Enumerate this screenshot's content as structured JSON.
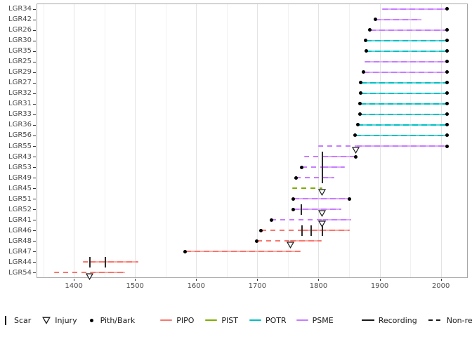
{
  "legend": {
    "scar": "Scar",
    "injury": "Injury",
    "pith_bark": "Pith/Bark",
    "species": [
      "PIPO",
      "PIST",
      "POTR",
      "PSME"
    ],
    "recording": "Recording",
    "non_recording": "Non-recording"
  },
  "chart_data": {
    "type": "line",
    "subtype": "fire-history-timeline",
    "title": "",
    "xlabel": "",
    "ylabel": "",
    "grid": "on",
    "legend_position": "bottom",
    "x_axis": {
      "tick_labels": [
        "1400",
        "1500",
        "1600",
        "1700",
        "1800",
        "1900",
        "2000"
      ],
      "ticks": [
        1400,
        1500,
        1600,
        1700,
        1800,
        1900,
        2000
      ],
      "minor_ticks": [
        1350,
        1450,
        1550,
        1650,
        1750,
        1850,
        1950
      ],
      "range": [
        1339,
        2044
      ]
    },
    "categories": [
      "LGR34",
      "LGR42",
      "LGR26",
      "LGR30",
      "LGR35",
      "LGR25",
      "LGR29",
      "LGR27",
      "LGR32",
      "LGR31",
      "LGR33",
      "LGR36",
      "LGR56",
      "LGR55",
      "LGR43",
      "LGR53",
      "LGR49",
      "LGR45",
      "LGR51",
      "LGR52",
      "LGR41",
      "LGR46",
      "LGR48",
      "LGR47",
      "LGR44",
      "LGR54"
    ],
    "species_colors": {
      "PIPO": "#F8766D",
      "PIST": "#7CAE00",
      "POTR": "#00BFC4",
      "PSME": "#C77CFF"
    },
    "species_colors_light": {
      "PIPO": "#FBA8A1",
      "PIST": "#A6C84D",
      "POTR": "#52D4D8",
      "PSME": "#DBA8FF"
    },
    "marker_color": "#000000",
    "recording_color": "#1A1A1A",
    "series": [
      {
        "name": "LGR34",
        "species": "PSME",
        "segments": [
          {
            "start": 1904,
            "end": 2010,
            "type": "recording"
          }
        ],
        "pith_bark": [
          2010
        ],
        "scars": [],
        "injuries": []
      },
      {
        "name": "LGR42",
        "species": "PSME",
        "segments": [
          {
            "start": 1893,
            "end": 1968,
            "type": "recording"
          }
        ],
        "pith_bark": [
          1893
        ],
        "scars": [],
        "injuries": []
      },
      {
        "name": "LGR26",
        "species": "PSME",
        "segments": [
          {
            "start": 1884,
            "end": 2010,
            "type": "recording"
          }
        ],
        "pith_bark": [
          1884,
          2010
        ],
        "scars": [],
        "injuries": []
      },
      {
        "name": "LGR30",
        "species": "POTR",
        "segments": [
          {
            "start": 1877,
            "end": 2010,
            "type": "recording"
          }
        ],
        "pith_bark": [
          1877,
          2010
        ],
        "scars": [],
        "injuries": []
      },
      {
        "name": "LGR35",
        "species": "POTR",
        "segments": [
          {
            "start": 1878,
            "end": 2010,
            "type": "recording"
          }
        ],
        "pith_bark": [
          1878,
          2010
        ],
        "scars": [],
        "injuries": []
      },
      {
        "name": "LGR25",
        "species": "PSME",
        "segments": [
          {
            "start": 1875,
            "end": 2010,
            "type": "recording"
          }
        ],
        "pith_bark": [
          2010
        ],
        "scars": [],
        "injuries": []
      },
      {
        "name": "LGR29",
        "species": "PSME",
        "segments": [
          {
            "start": 1874,
            "end": 2010,
            "type": "recording"
          }
        ],
        "pith_bark": [
          1874,
          2010
        ],
        "scars": [],
        "injuries": []
      },
      {
        "name": "LGR27",
        "species": "POTR",
        "segments": [
          {
            "start": 1869,
            "end": 2010,
            "type": "recording"
          }
        ],
        "pith_bark": [
          1869,
          2010
        ],
        "scars": [],
        "injuries": []
      },
      {
        "name": "LGR32",
        "species": "POTR",
        "segments": [
          {
            "start": 1869,
            "end": 2010,
            "type": "recording"
          }
        ],
        "pith_bark": [
          1869,
          2010
        ],
        "scars": [],
        "injuries": []
      },
      {
        "name": "LGR31",
        "species": "POTR",
        "segments": [
          {
            "start": 1868,
            "end": 2010,
            "type": "recording"
          }
        ],
        "pith_bark": [
          1868,
          2010
        ],
        "scars": [],
        "injuries": []
      },
      {
        "name": "LGR33",
        "species": "POTR",
        "segments": [
          {
            "start": 1868,
            "end": 2010,
            "type": "recording"
          }
        ],
        "pith_bark": [
          1868,
          2010
        ],
        "scars": [],
        "injuries": []
      },
      {
        "name": "LGR36",
        "species": "POTR",
        "segments": [
          {
            "start": 1864,
            "end": 2010,
            "type": "recording"
          }
        ],
        "pith_bark": [
          1864,
          2010
        ],
        "scars": [],
        "injuries": []
      },
      {
        "name": "LGR56",
        "species": "POTR",
        "segments": [
          {
            "start": 1860,
            "end": 2010,
            "type": "recording"
          }
        ],
        "pith_bark": [
          1860,
          2010
        ],
        "scars": [],
        "injuries": []
      },
      {
        "name": "LGR55",
        "species": "PSME",
        "segments": [
          {
            "start": 1800,
            "end": 1861,
            "type": "non-recording"
          },
          {
            "start": 1861,
            "end": 2010,
            "type": "recording"
          }
        ],
        "pith_bark": [
          2010
        ],
        "scars": [],
        "injuries": [
          1861
        ]
      },
      {
        "name": "LGR43",
        "species": "PSME",
        "segments": [
          {
            "start": 1777,
            "end": 1806,
            "type": "non-recording"
          },
          {
            "start": 1806,
            "end": 1861,
            "type": "recording"
          }
        ],
        "pith_bark": [
          1861
        ],
        "scars": [
          1806
        ],
        "injuries": []
      },
      {
        "name": "LGR53",
        "species": "PSME",
        "segments": [
          {
            "start": 1773,
            "end": 1806,
            "type": "non-recording"
          },
          {
            "start": 1806,
            "end": 1843,
            "type": "recording"
          }
        ],
        "pith_bark": [
          1773
        ],
        "scars": [
          1806
        ],
        "injuries": []
      },
      {
        "name": "LGR49",
        "species": "PSME",
        "segments": [
          {
            "start": 1763,
            "end": 1806,
            "type": "non-recording"
          },
          {
            "start": 1806,
            "end": 1826,
            "type": "recording"
          }
        ],
        "pith_bark": [
          1763
        ],
        "scars": [
          1806
        ],
        "injuries": []
      },
      {
        "name": "LGR45",
        "species": "PIST",
        "segments": [
          {
            "start": 1757,
            "end": 1806,
            "type": "non-recording"
          }
        ],
        "pith_bark": [],
        "scars": [],
        "injuries": [
          1806
        ]
      },
      {
        "name": "LGR51",
        "species": "PSME",
        "segments": [
          {
            "start": 1759,
            "end": 1851,
            "type": "recording"
          }
        ],
        "pith_bark": [
          1759,
          1851
        ],
        "scars": [],
        "injuries": []
      },
      {
        "name": "LGR52",
        "species": "PSME",
        "segments": [
          {
            "start": 1759,
            "end": 1837,
            "type": "recording"
          }
        ],
        "pith_bark": [
          1759
        ],
        "scars": [
          1772
        ],
        "injuries": [
          1806
        ]
      },
      {
        "name": "LGR41",
        "species": "PSME",
        "segments": [
          {
            "start": 1723,
            "end": 1806,
            "type": "non-recording"
          },
          {
            "start": 1806,
            "end": 1853,
            "type": "recording"
          }
        ],
        "pith_bark": [
          1723
        ],
        "scars": [],
        "injuries": [
          1806
        ]
      },
      {
        "name": "LGR46",
        "species": "PIPO",
        "segments": [
          {
            "start": 1706,
            "end": 1773,
            "type": "non-recording"
          },
          {
            "start": 1773,
            "end": 1851,
            "type": "recording"
          }
        ],
        "pith_bark": [
          1706
        ],
        "scars": [
          1773,
          1788,
          1806
        ],
        "injuries": []
      },
      {
        "name": "LGR48",
        "species": "PIPO",
        "segments": [
          {
            "start": 1699,
            "end": 1754,
            "type": "non-recording"
          },
          {
            "start": 1754,
            "end": 1805,
            "type": "recording"
          }
        ],
        "pith_bark": [
          1699
        ],
        "scars": [],
        "injuries": [
          1754
        ]
      },
      {
        "name": "LGR47",
        "species": "PIPO",
        "segments": [
          {
            "start": 1582,
            "end": 1771,
            "type": "recording"
          }
        ],
        "pith_bark": [
          1582
        ],
        "scars": [],
        "injuries": []
      },
      {
        "name": "LGR44",
        "species": "PIPO",
        "segments": [
          {
            "start": 1415,
            "end": 1426,
            "type": "non-recording"
          },
          {
            "start": 1426,
            "end": 1506,
            "type": "recording"
          }
        ],
        "pith_bark": [],
        "scars": [
          1426,
          1451
        ],
        "injuries": []
      },
      {
        "name": "LGR54",
        "species": "PIPO",
        "segments": [
          {
            "start": 1368,
            "end": 1426,
            "type": "non-recording"
          },
          {
            "start": 1426,
            "end": 1484,
            "type": "recording"
          }
        ],
        "pith_bark": [],
        "scars": [],
        "injuries": [
          1426
        ]
      }
    ]
  }
}
